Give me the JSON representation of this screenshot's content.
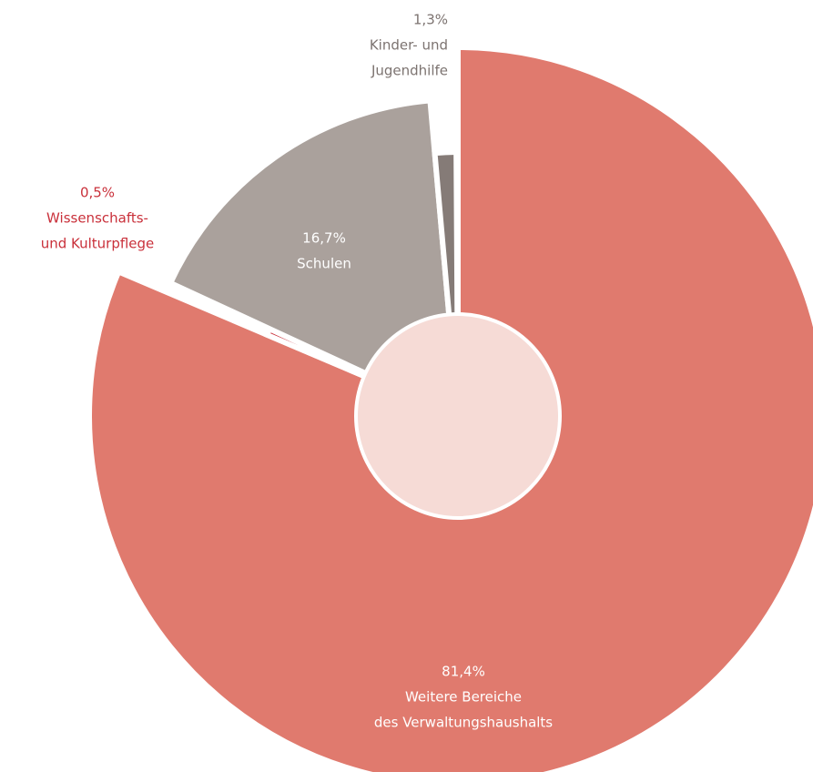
{
  "chart_data": {
    "type": "pie",
    "categories": [
      [
        "Weitere Bereiche",
        "des Verwaltungshaushalts"
      ],
      [
        "Wissenschafts-",
        "und Kulturpflege"
      ],
      [
        "Schulen"
      ],
      [
        "Kinder- und",
        "Jugendhilfe"
      ]
    ],
    "values": [
      81.4,
      0.5,
      16.7,
      1.3
    ],
    "value_labels": [
      "81,4%",
      "0,5%",
      "16,7%",
      "1,3%"
    ],
    "colors": [
      "#e07a6e",
      "#c9303a",
      "#aaa19c",
      "#857b77"
    ]
  }
}
